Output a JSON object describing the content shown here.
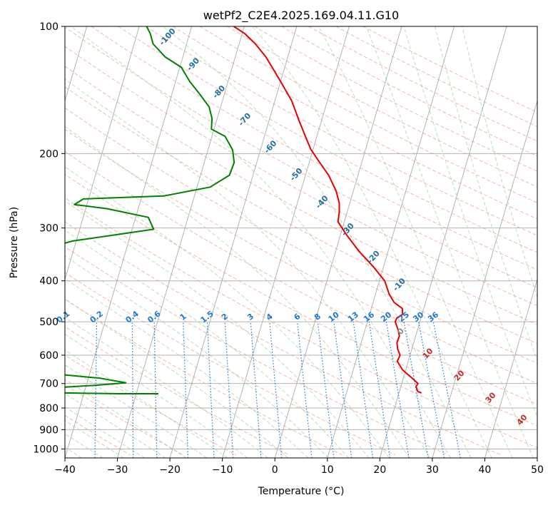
{
  "chart_data": {
    "type": "line",
    "title": "wetPf2_C2E4.2025.169.04.11.G10",
    "xlabel": "Temperature (°C)",
    "ylabel": "Pressure (hPa)",
    "xlim": [
      -40,
      50
    ],
    "ylim": [
      1050,
      100
    ],
    "y_scale": "log",
    "skew": true,
    "grid": true,
    "x_ticks": [
      -40,
      -30,
      -20,
      -10,
      0,
      10,
      20,
      30,
      40,
      50
    ],
    "y_ticks": [
      100,
      200,
      300,
      400,
      500,
      600,
      700,
      800,
      900,
      1000
    ],
    "series": [
      {
        "color": "#e60000",
        "points": [
          [
            24.3,
            737
          ],
          [
            23.5,
            731
          ],
          [
            22.9,
            712
          ],
          [
            23.1,
            700
          ],
          [
            21.6,
            679
          ],
          [
            19.4,
            650
          ],
          [
            17.9,
            620
          ],
          [
            18.1,
            600
          ],
          [
            17.3,
            580
          ],
          [
            16.8,
            560
          ],
          [
            16.9,
            540
          ],
          [
            16.2,
            520
          ],
          [
            15.3,
            500
          ],
          [
            15.4,
            490
          ],
          [
            16.3,
            480
          ],
          [
            15.9,
            465
          ],
          [
            14.0,
            450
          ],
          [
            12.6,
            430
          ],
          [
            11.0,
            400
          ],
          [
            8.0,
            370
          ],
          [
            4.4,
            340
          ],
          [
            1.0,
            310
          ],
          [
            -1.2,
            290
          ],
          [
            -1.5,
            275
          ],
          [
            -2.0,
            262
          ],
          [
            -3.3,
            245
          ],
          [
            -5.6,
            225
          ],
          [
            -8.0,
            210
          ],
          [
            -10.5,
            195
          ],
          [
            -12.2,
            182
          ],
          [
            -14.3,
            167
          ],
          [
            -16.8,
            150
          ],
          [
            -20.0,
            135
          ],
          [
            -22.4,
            125
          ],
          [
            -24.2,
            118
          ],
          [
            -26.9,
            110
          ],
          [
            -29.5,
            104
          ],
          [
            -32.0,
            100
          ]
        ]
      },
      {
        "color": "#008000",
        "points": [
          [
            -25.8,
            740
          ],
          [
            -33.3,
            740
          ],
          [
            -46.7,
            736
          ],
          [
            -50.3,
            725
          ],
          [
            -48.0,
            719
          ],
          [
            -38.3,
            707
          ],
          [
            -32.6,
            697
          ],
          [
            -37.8,
            680
          ],
          [
            -49.2,
            660
          ],
          [
            -46.5,
            640
          ],
          [
            -49.5,
            628
          ],
          [
            -60.0,
            610
          ],
          [
            -55.7,
            557
          ],
          [
            -60.0,
            552
          ],
          [
            -60.0,
            345
          ],
          [
            -53.5,
            330
          ],
          [
            -50.7,
            322
          ],
          [
            -35.9,
            302
          ],
          [
            -37.6,
            283
          ],
          [
            -45.9,
            270
          ],
          [
            -52.4,
            264
          ],
          [
            -51.0,
            256
          ],
          [
            -35.9,
            252
          ],
          [
            -27.5,
            240
          ],
          [
            -24.5,
            225
          ],
          [
            -24.3,
            210
          ],
          [
            -25.3,
            196
          ],
          [
            -27.5,
            182
          ],
          [
            -30.5,
            175
          ],
          [
            -31.0,
            165
          ],
          [
            -32.2,
            155
          ],
          [
            -34.6,
            145
          ],
          [
            -37.3,
            135
          ],
          [
            -39.7,
            125
          ],
          [
            -43.4,
            118
          ],
          [
            -46.4,
            110
          ],
          [
            -47.5,
            104
          ],
          [
            -48.6,
            100
          ]
        ]
      }
    ],
    "dry_adiabat_labels": [
      "-100",
      "-90",
      "-80",
      "-70",
      "-60",
      "-50",
      "-40",
      "-30",
      "-20",
      "-10"
    ],
    "mixing_ratio_labels": [
      "0.1",
      "0.2",
      "0.4",
      "0.6",
      "1",
      "1.5",
      "2",
      "3",
      "4",
      "6",
      "8",
      "10",
      "13",
      "16",
      "20",
      "25",
      "30",
      "36"
    ],
    "moist_adiabat_labels": [
      "0",
      "10",
      "20",
      "30",
      "40"
    ],
    "colors": {
      "temperature": "#e60000",
      "dewpoint": "#008000",
      "isotherm": "#b4b4b4",
      "dry_adiabat": "#f08a68",
      "moist_adiabat": "#8cc98c",
      "mixing_ratio": "#1f77d4",
      "dry_label": "#2070a0",
      "moist_label": "#c62828",
      "zero_label": "#888888"
    }
  }
}
